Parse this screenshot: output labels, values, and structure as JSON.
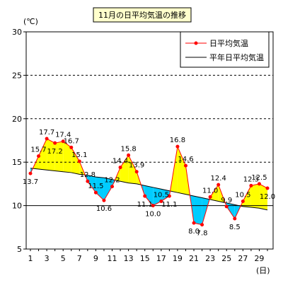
{
  "chart_data": {
    "type": "line",
    "title": "11月の日平均気温の推移",
    "ylabel": "(℃)",
    "xlabel": "(日)",
    "ylim": [
      5,
      30
    ],
    "yticks": [
      5,
      10,
      15,
      20,
      25,
      30
    ],
    "xlim": [
      1,
      30
    ],
    "xticks": [
      1,
      3,
      5,
      7,
      9,
      11,
      13,
      15,
      17,
      19,
      21,
      23,
      25,
      27,
      29
    ],
    "grid": "dashed horizontal at 15, 20, 25",
    "legend_position": "top-right",
    "x": [
      1,
      2,
      3,
      4,
      5,
      6,
      7,
      8,
      9,
      10,
      11,
      12,
      13,
      14,
      15,
      16,
      17,
      18,
      19,
      20,
      21,
      22,
      23,
      24,
      25,
      26,
      27,
      28,
      29,
      30
    ],
    "series": [
      {
        "name": "日平均気温",
        "color": "#ff0000",
        "marker": "circle",
        "values": [
          13.7,
          15.7,
          17.7,
          17.2,
          17.4,
          16.7,
          15.1,
          12.8,
          11.5,
          10.6,
          12.2,
          14.4,
          15.8,
          13.9,
          11.1,
          10.0,
          10.5,
          11.1,
          16.8,
          14.6,
          8.0,
          7.8,
          11.0,
          12.4,
          9.9,
          8.5,
          10.5,
          12.3,
          12.5,
          12.0
        ],
        "point_labels": [
          "13.7",
          "15.7",
          "17.7",
          "17.2",
          "17.4",
          "16.7",
          "15.1",
          "12.8",
          "11.5",
          "10.6",
          "12.2",
          "14.4",
          "15.8",
          "13.9",
          "11.1",
          "10.0",
          "10.5",
          "11.1",
          "16.8",
          "14.6",
          "8.0",
          "7.8",
          "11.0",
          "12.4",
          "9.9",
          "8.5",
          "10.5",
          "12.3",
          "12.5",
          "12.0"
        ]
      },
      {
        "name": "平年日平均気温",
        "color": "#000000",
        "values": [
          14.3,
          14.2,
          14.1,
          14.0,
          13.9,
          13.8,
          13.6,
          13.5,
          13.3,
          13.2,
          13.0,
          12.8,
          12.6,
          12.5,
          12.3,
          12.1,
          11.9,
          11.7,
          11.5,
          11.3,
          11.1,
          10.9,
          10.7,
          10.5,
          10.3,
          10.1,
          9.9,
          9.8,
          9.7,
          9.5
        ]
      }
    ],
    "fill_above_color": "#ffff00",
    "fill_below_color": "#00ccff"
  }
}
